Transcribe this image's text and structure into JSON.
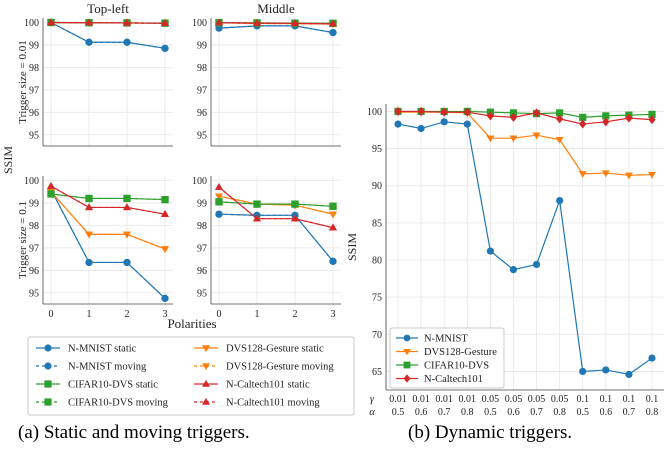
{
  "figure": {
    "caption_a": "(a) Static and moving triggers.",
    "caption_b": "(b) Dynamic triggers."
  },
  "colors": {
    "N-MNIST": "#1f77b4",
    "DVS128-Gesture": "#ff7f0e",
    "CIFAR10-DVS": "#2ca02c",
    "N-Caltech101": "#d62728",
    "grid": "#e6e6e6"
  },
  "chart_data": [
    {
      "type": "line",
      "title": "Top-left",
      "ylabel": "Trigger size = 0.01",
      "x": [
        0,
        1,
        2,
        3
      ],
      "ylim": [
        94.5,
        100.2
      ],
      "yticks": [
        95,
        96,
        97,
        98,
        99,
        100
      ],
      "xticks": [],
      "grid": true,
      "series": [
        {
          "name": "N-MNIST static",
          "dataset": "N-MNIST",
          "style": "static",
          "values": [
            100,
            99.12,
            99.12,
            98.85
          ]
        },
        {
          "name": "N-MNIST moving",
          "dataset": "N-MNIST",
          "style": "moving",
          "values": [
            100,
            99.12,
            99.12,
            98.85
          ]
        },
        {
          "name": "CIFAR10-DVS static",
          "dataset": "CIFAR10-DVS",
          "style": "static",
          "values": [
            100,
            99.99,
            99.98,
            99.97
          ]
        },
        {
          "name": "CIFAR10-DVS moving",
          "dataset": "CIFAR10-DVS",
          "style": "moving",
          "values": [
            100,
            99.99,
            99.98,
            99.97
          ]
        },
        {
          "name": "DVS128-Gesture static",
          "dataset": "DVS128-Gesture",
          "style": "static",
          "values": [
            100,
            99.99,
            99.98,
            99.97
          ]
        },
        {
          "name": "DVS128-Gesture moving",
          "dataset": "DVS128-Gesture",
          "style": "moving",
          "values": [
            100,
            99.99,
            99.98,
            99.97
          ]
        },
        {
          "name": "N-Caltech101 static",
          "dataset": "N-Caltech101",
          "style": "static",
          "values": [
            100,
            99.99,
            99.98,
            99.97
          ]
        },
        {
          "name": "N-Caltech101 moving",
          "dataset": "N-Caltech101",
          "style": "moving",
          "values": [
            100,
            99.99,
            99.98,
            99.97
          ]
        }
      ]
    },
    {
      "type": "line",
      "title": "Middle",
      "ylabel": "",
      "x": [
        0,
        1,
        2,
        3
      ],
      "ylim": [
        94.5,
        100.2
      ],
      "yticks": [
        95,
        96,
        97,
        98,
        99,
        100
      ],
      "xticks": [],
      "grid": true,
      "series": [
        {
          "name": "N-MNIST static",
          "dataset": "N-MNIST",
          "style": "static",
          "values": [
            99.75,
            99.85,
            99.85,
            99.55
          ]
        },
        {
          "name": "N-MNIST moving",
          "dataset": "N-MNIST",
          "style": "moving",
          "values": [
            99.75,
            99.85,
            99.85,
            99.55
          ]
        },
        {
          "name": "CIFAR10-DVS static",
          "dataset": "CIFAR10-DVS",
          "style": "static",
          "values": [
            99.99,
            99.98,
            99.97,
            99.96
          ]
        },
        {
          "name": "CIFAR10-DVS moving",
          "dataset": "CIFAR10-DVS",
          "style": "moving",
          "values": [
            99.99,
            99.98,
            99.97,
            99.96
          ]
        },
        {
          "name": "DVS128-Gesture static",
          "dataset": "DVS128-Gesture",
          "style": "static",
          "values": [
            99.99,
            99.96,
            99.95,
            99.93
          ]
        },
        {
          "name": "DVS128-Gesture moving",
          "dataset": "DVS128-Gesture",
          "style": "moving",
          "values": [
            99.99,
            99.96,
            99.95,
            99.93
          ]
        },
        {
          "name": "N-Caltech101 static",
          "dataset": "N-Caltech101",
          "style": "static",
          "values": [
            99.99,
            99.97,
            99.96,
            99.94
          ]
        },
        {
          "name": "N-Caltech101 moving",
          "dataset": "N-Caltech101",
          "style": "moving",
          "values": [
            99.99,
            99.97,
            99.96,
            99.94
          ]
        }
      ]
    },
    {
      "type": "line",
      "title": "",
      "ylabel": "Trigger size = 0.1",
      "x": [
        0,
        1,
        2,
        3
      ],
      "ylim": [
        94.5,
        100.2
      ],
      "yticks": [
        95,
        96,
        97,
        98,
        99,
        100
      ],
      "xticks": [
        "0",
        "1",
        "2",
        "3"
      ],
      "grid": true,
      "series": [
        {
          "name": "N-MNIST static",
          "dataset": "N-MNIST",
          "style": "static",
          "values": [
            99.6,
            96.35,
            96.35,
            94.75
          ]
        },
        {
          "name": "N-MNIST moving",
          "dataset": "N-MNIST",
          "style": "moving",
          "values": [
            99.6,
            96.35,
            96.35,
            94.75
          ]
        },
        {
          "name": "CIFAR10-DVS static",
          "dataset": "CIFAR10-DVS",
          "style": "static",
          "values": [
            99.4,
            99.2,
            99.2,
            99.15
          ]
        },
        {
          "name": "CIFAR10-DVS moving",
          "dataset": "CIFAR10-DVS",
          "style": "moving",
          "values": [
            99.4,
            99.2,
            99.2,
            99.15
          ]
        },
        {
          "name": "DVS128-Gesture static",
          "dataset": "DVS128-Gesture",
          "style": "static",
          "values": [
            99.5,
            97.6,
            97.6,
            96.95
          ]
        },
        {
          "name": "DVS128-Gesture moving",
          "dataset": "DVS128-Gesture",
          "style": "moving",
          "values": [
            99.5,
            97.6,
            97.6,
            96.95
          ]
        },
        {
          "name": "N-Caltech101 static",
          "dataset": "N-Caltech101",
          "style": "static",
          "values": [
            99.75,
            98.8,
            98.8,
            98.5
          ]
        },
        {
          "name": "N-Caltech101 moving",
          "dataset": "N-Caltech101",
          "style": "moving",
          "values": [
            99.75,
            98.8,
            98.8,
            98.5
          ]
        }
      ]
    },
    {
      "type": "line",
      "title": "",
      "ylabel": "",
      "x": [
        0,
        1,
        2,
        3
      ],
      "ylim": [
        94.5,
        100.2
      ],
      "yticks": [
        95,
        96,
        97,
        98,
        99,
        100
      ],
      "xticks": [
        "0",
        "1",
        "2",
        "3"
      ],
      "grid": true,
      "series": [
        {
          "name": "N-MNIST static",
          "dataset": "N-MNIST",
          "style": "static",
          "values": [
            98.5,
            98.45,
            98.45,
            96.4
          ]
        },
        {
          "name": "N-MNIST moving",
          "dataset": "N-MNIST",
          "style": "moving",
          "values": [
            98.5,
            98.45,
            98.45,
            96.4
          ]
        },
        {
          "name": "CIFAR10-DVS static",
          "dataset": "CIFAR10-DVS",
          "style": "static",
          "values": [
            99.05,
            98.95,
            98.95,
            98.85
          ]
        },
        {
          "name": "CIFAR10-DVS moving",
          "dataset": "CIFAR10-DVS",
          "style": "moving",
          "values": [
            99.05,
            98.95,
            98.95,
            98.85
          ]
        },
        {
          "name": "DVS128-Gesture static",
          "dataset": "DVS128-Gesture",
          "style": "static",
          "values": [
            99.3,
            98.95,
            98.9,
            98.5
          ]
        },
        {
          "name": "DVS128-Gesture moving",
          "dataset": "DVS128-Gesture",
          "style": "moving",
          "values": [
            99.3,
            98.95,
            98.9,
            98.5
          ]
        },
        {
          "name": "N-Caltech101 static",
          "dataset": "N-Caltech101",
          "style": "static",
          "values": [
            99.7,
            98.3,
            98.3,
            97.9
          ]
        },
        {
          "name": "N-Caltech101 moving",
          "dataset": "N-Caltech101",
          "style": "moving",
          "values": [
            99.7,
            98.3,
            98.3,
            97.9
          ]
        }
      ]
    },
    {
      "type": "line",
      "title": "",
      "ylabel": "SSIM",
      "x": [
        1,
        2,
        3,
        4,
        5,
        6,
        7,
        8,
        9,
        10,
        11,
        12
      ],
      "xtick_gamma": [
        "0.01",
        "0.01",
        "0.01",
        "0.01",
        "0.05",
        "0.05",
        "0.05",
        "0.05",
        "0.1",
        "0.1",
        "0.1",
        "0.1"
      ],
      "xtick_alpha": [
        "0.5",
        "0.6",
        "0.7",
        "0.8",
        "0.5",
        "0.6",
        "0.7",
        "0.8",
        "0.5",
        "0.6",
        "0.7",
        "0.8"
      ],
      "gamma_symbol": "γ",
      "alpha_symbol": "α",
      "ylim": [
        62.5,
        101
      ],
      "yticks": [
        65,
        70,
        75,
        80,
        85,
        90,
        95,
        100
      ],
      "grid": true,
      "legend_position": "lower-left",
      "series": [
        {
          "name": "N-MNIST",
          "values": [
            98.3,
            97.7,
            98.6,
            98.3,
            81.2,
            78.7,
            79.4,
            88.0,
            65.0,
            65.2,
            64.6,
            66.8
          ]
        },
        {
          "name": "DVS128-Gesture",
          "values": [
            99.9,
            99.9,
            99.9,
            99.8,
            96.4,
            96.4,
            96.8,
            96.2,
            91.6,
            91.7,
            91.4,
            91.5
          ]
        },
        {
          "name": "CIFAR10-DVS",
          "values": [
            100,
            100,
            100,
            100,
            99.9,
            99.8,
            99.7,
            99.8,
            99.2,
            99.4,
            99.5,
            99.6
          ]
        },
        {
          "name": "N-Caltech101",
          "values": [
            100,
            100,
            99.9,
            99.9,
            99.4,
            99.2,
            99.8,
            99.0,
            98.3,
            98.6,
            99.1,
            98.9
          ]
        }
      ]
    }
  ],
  "shared_axes_a": {
    "ylabel": "SSIM",
    "xlabel": "Polarities"
  },
  "legend_a": [
    {
      "label": "N-MNIST static",
      "dataset": "N-MNIST",
      "style": "static"
    },
    {
      "label": "DVS128-Gesture static",
      "dataset": "DVS128-Gesture",
      "style": "static"
    },
    {
      "label": "N-MNIST moving",
      "dataset": "N-MNIST",
      "style": "moving"
    },
    {
      "label": "DVS128-Gesture moving",
      "dataset": "DVS128-Gesture",
      "style": "moving"
    },
    {
      "label": "CIFAR10-DVS static",
      "dataset": "CIFAR10-DVS",
      "style": "static"
    },
    {
      "label": "N-Caltech101 static",
      "dataset": "N-Caltech101",
      "style": "static"
    },
    {
      "label": "CIFAR10-DVS moving",
      "dataset": "CIFAR10-DVS",
      "style": "moving"
    },
    {
      "label": "N-Caltech101 moving",
      "dataset": "N-Caltech101",
      "style": "moving"
    }
  ],
  "markers": {
    "N-MNIST": "circle",
    "DVS128-Gesture": "triangle-down",
    "CIFAR10-DVS": "square",
    "N-Caltech101-static": "triangle-up",
    "N-Caltech101-dynamic": "diamond"
  }
}
